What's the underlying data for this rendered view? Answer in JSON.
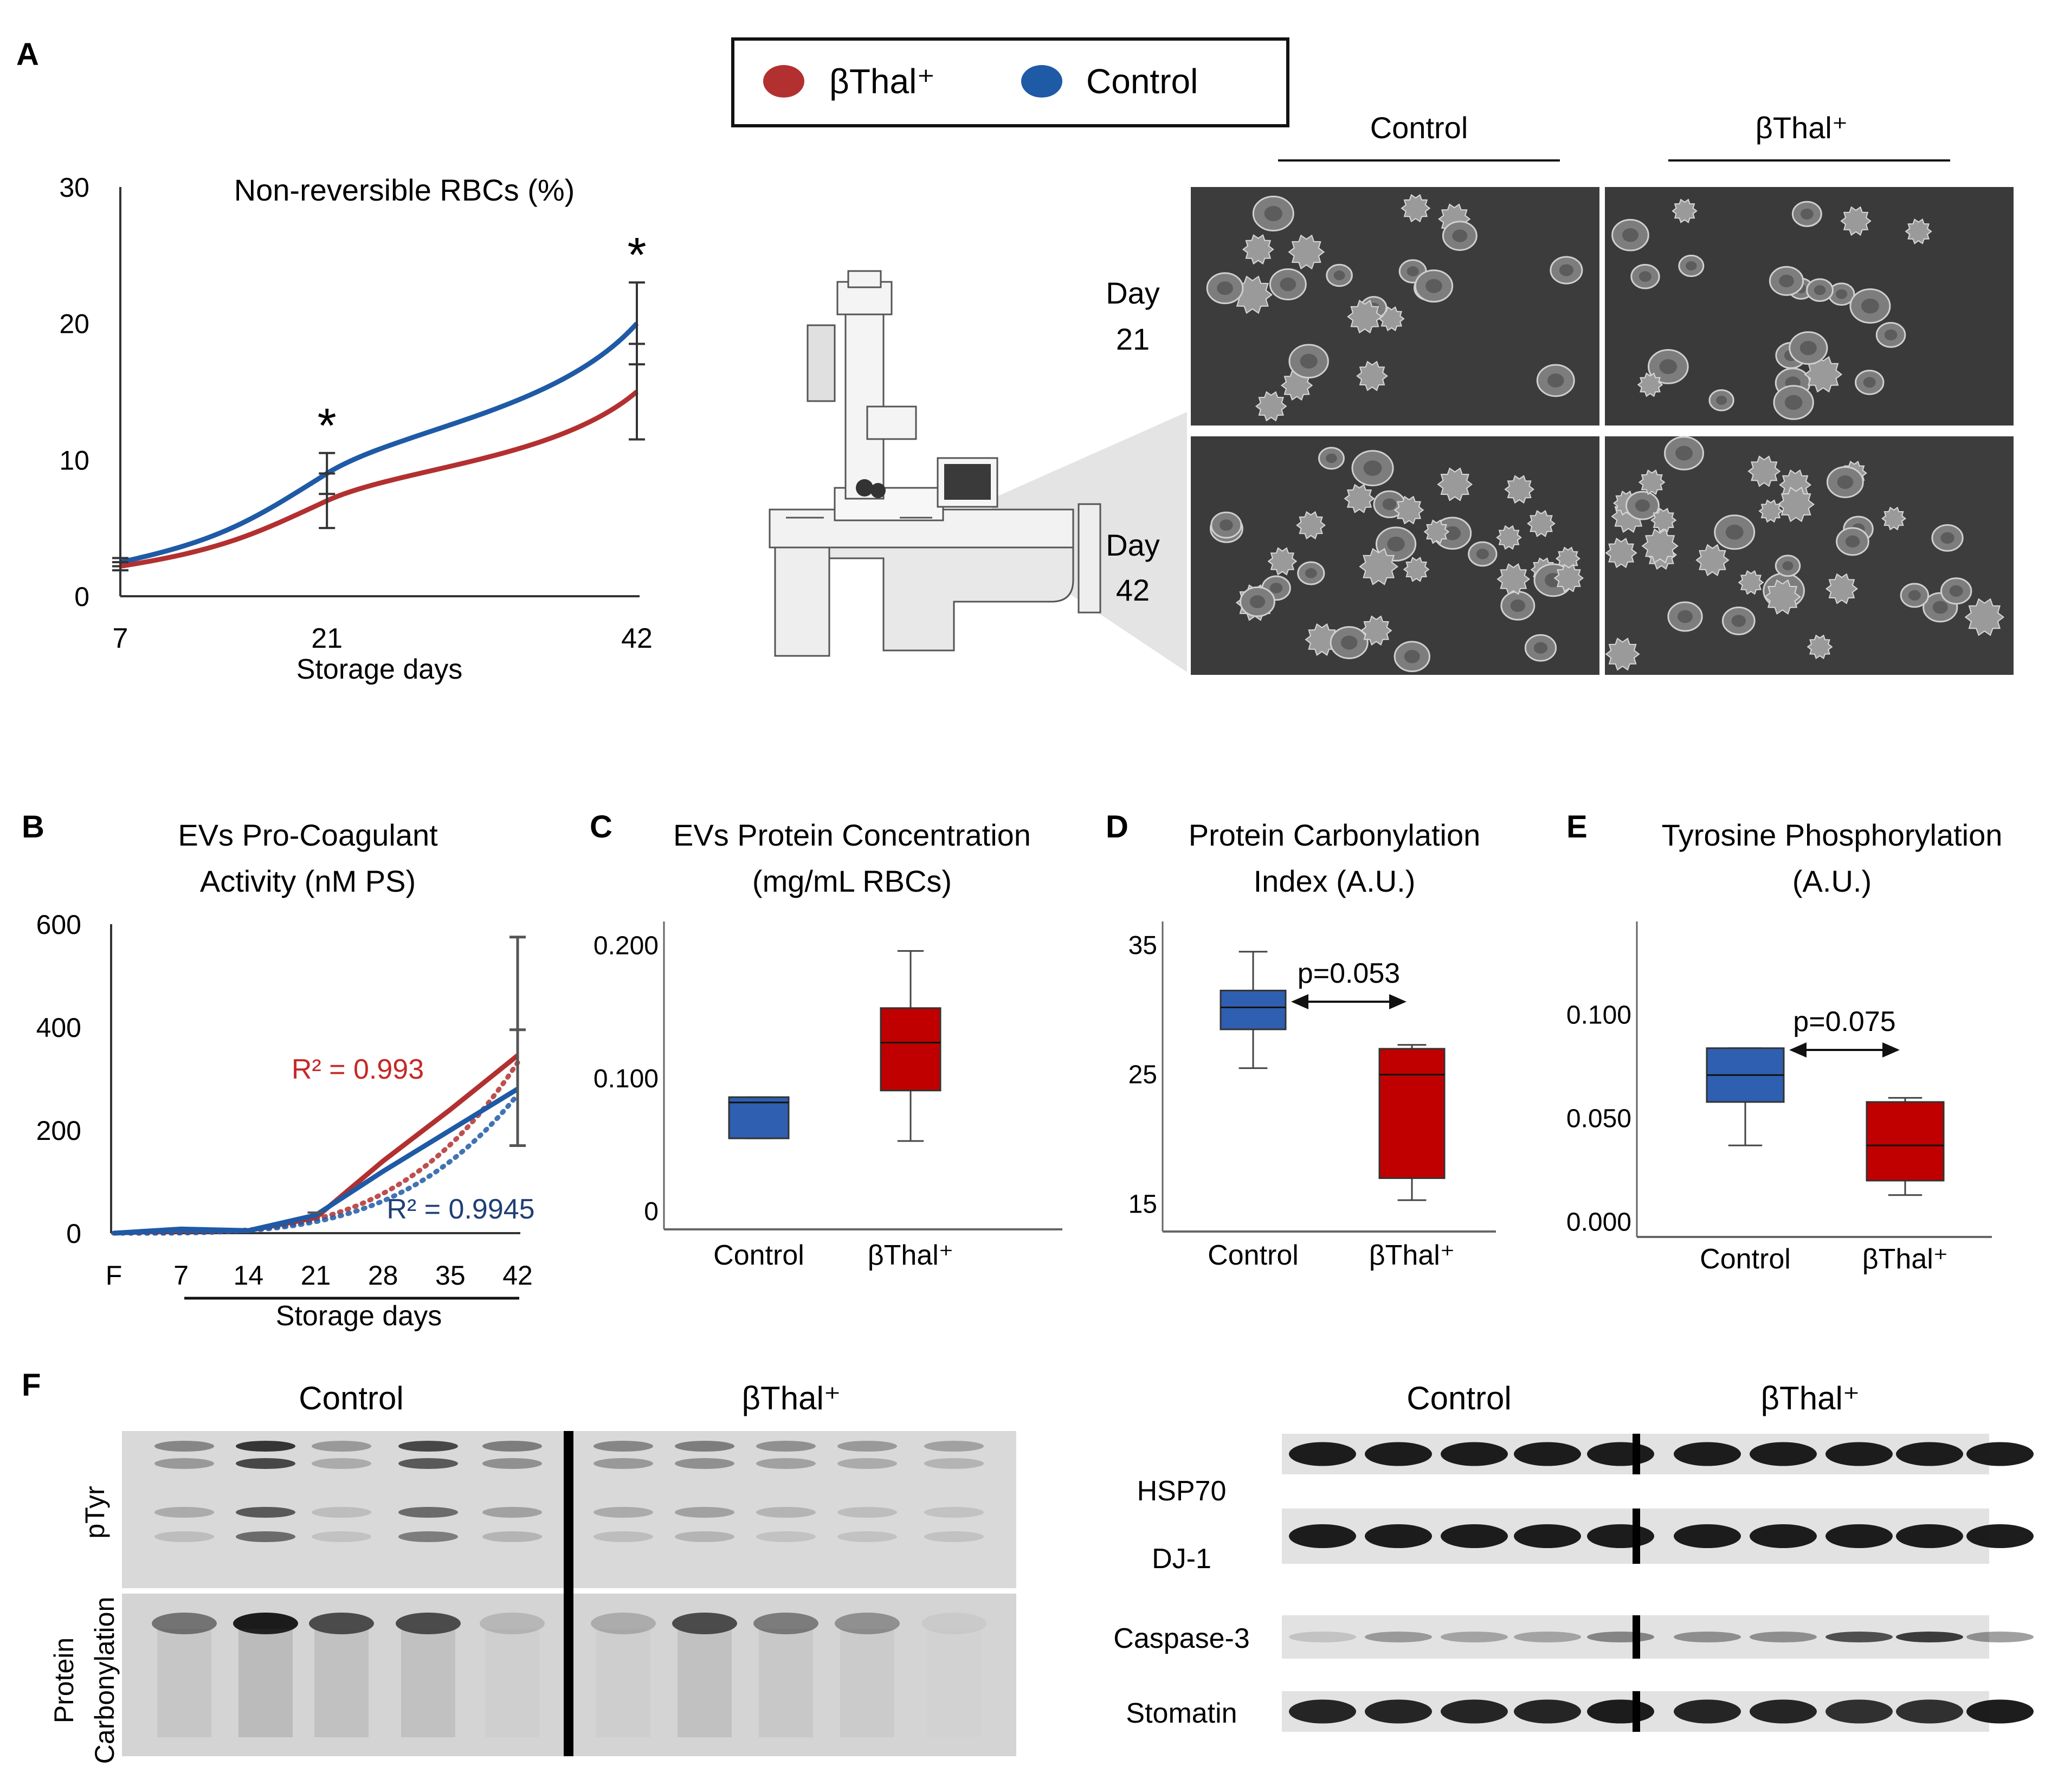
{
  "colors": {
    "bthal": "#b33030",
    "control": "#1e5aa6",
    "bthal_box": "#c00000",
    "control_box": "#2f5fb0",
    "axis": "#333333",
    "text": "#1a1a1a"
  },
  "legend": {
    "items": [
      {
        "label": "βThal⁺",
        "color": "#b33030"
      },
      {
        "label": "Control",
        "color": "#1e5aa6"
      }
    ]
  },
  "panel_a": {
    "letter": "A",
    "sem": {
      "col_labels": [
        "Control",
        "βThal⁺"
      ],
      "row_labels": [
        [
          "Day",
          "21"
        ],
        [
          "Day",
          "42"
        ]
      ]
    },
    "microscope_icon": "electron-microscope-icon"
  },
  "panel_b": {
    "letter": "B",
    "xlabel_sub": "Storage days"
  },
  "panel_c": {
    "letter": "C"
  },
  "panel_d": {
    "letter": "D"
  },
  "panel_e": {
    "letter": "E"
  },
  "panel_f": {
    "letter": "F",
    "left_headers": [
      "Control",
      "βThal⁺"
    ],
    "left_rows": [
      "pTyr",
      "Protein",
      "Carbonylation"
    ],
    "right_headers": [
      "Control",
      "βThal⁺"
    ],
    "right_rows": [
      "HSP70",
      "DJ-1",
      "Caspase-3",
      "Stomatin"
    ]
  },
  "chart_data": [
    {
      "id": "A",
      "type": "line",
      "title": "Non-reversible RBCs (%)",
      "xlabel": "Storage days",
      "ylabel": "",
      "x": [
        7,
        21,
        42
      ],
      "xticks": [
        "7",
        "21",
        "42"
      ],
      "yticks": [
        "0",
        "10",
        "20",
        "30"
      ],
      "ylim": [
        0,
        30
      ],
      "series": [
        {
          "name": "Control",
          "values": [
            2.5,
            9,
            20
          ],
          "err": [
            0.3,
            1.5,
            3
          ]
        },
        {
          "name": "βThal⁺",
          "values": [
            2.2,
            7,
            15
          ],
          "err": [
            0.3,
            2,
            3.5
          ]
        }
      ],
      "annotations": [
        "*",
        "*"
      ]
    },
    {
      "id": "B",
      "type": "line",
      "title": "EVs Pro-Coagulant Activity (nM PS)",
      "xlabel": "Storage days",
      "ylabel": "",
      "categories": [
        "F",
        "7",
        "14",
        "21",
        "28",
        "35",
        "42"
      ],
      "yticks": [
        "0",
        "200",
        "400",
        "600"
      ],
      "ylim": [
        0,
        600
      ],
      "series": [
        {
          "name": "βThal⁺",
          "values": [
            0,
            5,
            5,
            30,
            140,
            240,
            345
          ],
          "fit_r2": "R² = 0.993"
        },
        {
          "name": "Control",
          "values": [
            0,
            8,
            5,
            35,
            120,
            200,
            280
          ],
          "fit_r2": "R² = 0.9945"
        }
      ],
      "error_42": {
        "high": 575,
        "mid_hi": 395,
        "mid_lo": 170
      }
    },
    {
      "id": "C",
      "type": "box",
      "title": "EVs Protein Concentration (mg/mL RBCs)",
      "categories": [
        "Control",
        "βThal⁺"
      ],
      "yticks": [
        "0",
        "0.100",
        "0.200"
      ],
      "ylim": [
        0,
        0.21
      ],
      "boxes": [
        {
          "name": "Control",
          "q1": 0.055,
          "median": 0.082,
          "q3": 0.086,
          "min": 0.055,
          "max": 0.086
        },
        {
          "name": "βThal⁺",
          "q1": 0.091,
          "median": 0.127,
          "q3": 0.153,
          "min": 0.053,
          "max": 0.196
        }
      ]
    },
    {
      "id": "D",
      "type": "box",
      "title": "Protein Carbonylation Index (A.U.)",
      "categories": [
        "Control",
        "βThal⁺"
      ],
      "yticks": [
        "15",
        "25",
        "35"
      ],
      "ylim": [
        14.3,
        36
      ],
      "p_value": "p=0.053",
      "boxes": [
        {
          "name": "Control",
          "q1": 28.5,
          "median": 30.2,
          "q3": 31.5,
          "min": 25.5,
          "max": 34.5
        },
        {
          "name": "βThal⁺",
          "q1": 17.0,
          "median": 25.0,
          "q3": 27.0,
          "min": 15.3,
          "max": 27.3
        }
      ]
    },
    {
      "id": "E",
      "type": "box",
      "title": "Tyrosine Phosphorylation (A.U.)",
      "categories": [
        "Control",
        "βThal⁺"
      ],
      "yticks": [
        "0.000",
        "0.050",
        "0.100"
      ],
      "ylim": [
        -0.002,
        0.14
      ],
      "p_value": "p=0.075",
      "boxes": [
        {
          "name": "Control",
          "q1": 0.058,
          "median": 0.071,
          "q3": 0.084,
          "min": 0.037,
          "max": 0.084
        },
        {
          "name": "βThal⁺",
          "q1": 0.02,
          "median": 0.037,
          "q3": 0.058,
          "min": 0.013,
          "max": 0.06
        }
      ]
    }
  ]
}
